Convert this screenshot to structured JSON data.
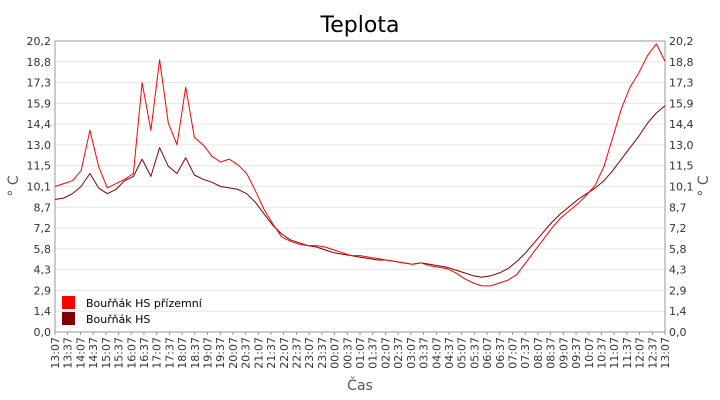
{
  "chart_data": {
    "type": "line",
    "title": "Teplota",
    "xlabel": "Čas",
    "ylabel": "° C",
    "ylim": [
      0,
      20.2
    ],
    "y_ticks": [
      "0,0",
      "1,4",
      "2,9",
      "4,3",
      "5,8",
      "7,2",
      "8,7",
      "10,1",
      "11,5",
      "13,0",
      "14,4",
      "15,9",
      "17,3",
      "18,8",
      "20,2"
    ],
    "x_ticks": [
      "13:07",
      "13:37",
      "14:07",
      "14:37",
      "15:07",
      "15:37",
      "16:07",
      "16:37",
      "17:07",
      "17:37",
      "18:07",
      "18:37",
      "19:07",
      "19:37",
      "20:07",
      "20:37",
      "21:07",
      "21:37",
      "22:07",
      "22:37",
      "23:07",
      "23:37",
      "00:07",
      "00:37",
      "01:07",
      "01:37",
      "02:07",
      "02:37",
      "03:07",
      "03:37",
      "04:07",
      "04:37",
      "05:07",
      "05:37",
      "06:07",
      "06:37",
      "07:07",
      "07:37",
      "08:07",
      "08:37",
      "09:07",
      "09:37",
      "10:07",
      "10:37",
      "11:07",
      "11:37",
      "12:07",
      "12:37",
      "13:07"
    ],
    "grid": true,
    "legend_position": "bottom-left",
    "series": [
      {
        "name": "Bouřňák HS přízemní",
        "color": "#ff0000",
        "values": [
          10.1,
          10.3,
          10.5,
          11.2,
          14.0,
          11.5,
          10.0,
          10.3,
          10.6,
          11.0,
          17.3,
          14.0,
          18.9,
          14.5,
          13.0,
          17.0,
          13.5,
          13.0,
          12.2,
          11.8,
          12.0,
          11.6,
          11.0,
          9.8,
          8.5,
          7.5,
          6.6,
          6.3,
          6.1,
          6.0,
          6.0,
          5.9,
          5.7,
          5.5,
          5.3,
          5.3,
          5.2,
          5.1,
          5.0,
          4.9,
          4.8,
          4.7,
          4.8,
          4.6,
          4.5,
          4.4,
          4.1,
          3.7,
          3.4,
          3.2,
          3.2,
          3.4,
          3.6,
          4.0,
          4.8,
          5.6,
          6.4,
          7.2,
          7.9,
          8.4,
          8.9,
          9.5,
          10.2,
          11.5,
          13.5,
          15.5,
          17.0,
          18.0,
          19.2,
          20.0,
          18.8
        ]
      },
      {
        "name": "Bouřňák HS",
        "color": "#800000",
        "values": [
          9.2,
          9.3,
          9.6,
          10.1,
          11.0,
          10.0,
          9.6,
          9.9,
          10.5,
          10.8,
          12.0,
          10.8,
          12.8,
          11.5,
          11.0,
          12.1,
          10.9,
          10.6,
          10.4,
          10.1,
          10.0,
          9.9,
          9.6,
          9.0,
          8.2,
          7.4,
          6.8,
          6.4,
          6.2,
          6.0,
          5.9,
          5.7,
          5.5,
          5.4,
          5.3,
          5.2,
          5.1,
          5.0,
          5.0,
          4.9,
          4.8,
          4.7,
          4.8,
          4.7,
          4.6,
          4.5,
          4.3,
          4.1,
          3.9,
          3.8,
          3.9,
          4.1,
          4.4,
          4.9,
          5.5,
          6.2,
          6.9,
          7.6,
          8.2,
          8.7,
          9.2,
          9.6,
          10.0,
          10.5,
          11.2,
          12.0,
          12.8,
          13.6,
          14.5,
          15.2,
          15.7
        ]
      }
    ]
  }
}
